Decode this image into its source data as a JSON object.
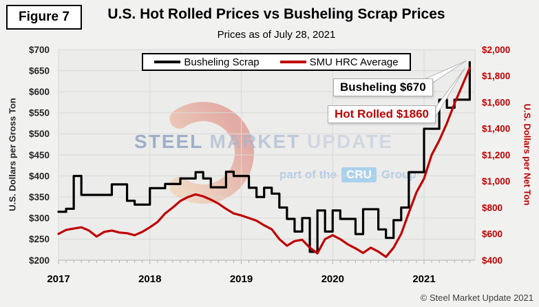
{
  "figure_label": "Figure 7",
  "title": "U.S. Hot Rolled Prices vs Busheling Scrap Prices",
  "subtitle": "Prices as of July 28, 2021",
  "copyright": "© Steel Market Update 2021",
  "watermark": {
    "word1": "STEEL",
    "word2": "MARKET",
    "word3": "UPDATE",
    "tagline_prefix": "part of the",
    "tagline_badge": "CRU",
    "tagline_suffix": "Group"
  },
  "annotations": {
    "busheling": {
      "text": "Busheling $670",
      "color": "#000000"
    },
    "hot_rolled": {
      "text": "Hot Rolled $1860",
      "color": "#C00000"
    }
  },
  "colors": {
    "page_bg": "#f1f1f0",
    "plot_bg": "#ececeb",
    "grid": "#d9d9d8",
    "axis_line": "#b3b3b3",
    "busheling_line": "#000000",
    "hrc_line": "#C00000",
    "right_axis_text": "#C00000",
    "left_axis_text": "#262626"
  },
  "chart_data": {
    "type": "line",
    "x": [
      "2017-01",
      "2017-02",
      "2017-03",
      "2017-04",
      "2017-05",
      "2017-06",
      "2017-07",
      "2017-08",
      "2017-09",
      "2017-10",
      "2017-11",
      "2017-12",
      "2018-01",
      "2018-02",
      "2018-03",
      "2018-04",
      "2018-05",
      "2018-06",
      "2018-07",
      "2018-08",
      "2018-09",
      "2018-10",
      "2018-11",
      "2018-12",
      "2019-01",
      "2019-02",
      "2019-03",
      "2019-04",
      "2019-05",
      "2019-06",
      "2019-07",
      "2019-08",
      "2019-09",
      "2019-10",
      "2019-11",
      "2019-12",
      "2020-01",
      "2020-02",
      "2020-03",
      "2020-04",
      "2020-05",
      "2020-06",
      "2020-07",
      "2020-08",
      "2020-09",
      "2020-10",
      "2020-11",
      "2020-12",
      "2021-01",
      "2021-02",
      "2021-03",
      "2021-04",
      "2021-05",
      "2021-06",
      "2021-07"
    ],
    "series": [
      {
        "name": "Busheling Scrap",
        "axis": "left",
        "color": "#000000",
        "style": "step",
        "values": [
          315,
          322,
          400,
          355,
          355,
          355,
          355,
          380,
          380,
          341,
          332,
          332,
          371,
          371,
          381,
          381,
          394,
          394,
          409,
          394,
          373,
          373,
          410,
          400,
          400,
          372,
          350,
          372,
          358,
          325,
          298,
          268,
          300,
          220,
          318,
          268,
          318,
          298,
          298,
          262,
          321,
          321,
          273,
          253,
          295,
          325,
          409,
          409,
          512,
          512,
          581,
          562,
          581,
          581,
          670
        ]
      },
      {
        "name": "SMU HRC Average",
        "axis": "right",
        "color": "#C00000",
        "style": "linear",
        "values": [
          600,
          630,
          640,
          650,
          625,
          580,
          615,
          625,
          610,
          605,
          590,
          615,
          650,
          690,
          755,
          800,
          850,
          880,
          900,
          885,
          860,
          830,
          790,
          755,
          740,
          720,
          700,
          665,
          635,
          560,
          510,
          545,
          555,
          495,
          452,
          560,
          590,
          560,
          520,
          490,
          455,
          495,
          465,
          425,
          495,
          600,
          760,
          915,
          1020,
          1200,
          1310,
          1440,
          1590,
          1725,
          1860
        ]
      }
    ],
    "left_axis": {
      "title": "U.S. Dollars per Gross Ton",
      "min": 200,
      "max": 700,
      "tick_step": 50,
      "tick_labels": [
        "$700",
        "$650",
        "$600",
        "$550",
        "$500",
        "$450",
        "$400",
        "$350",
        "$300",
        "$250",
        "$200"
      ]
    },
    "right_axis": {
      "title": "U.S. Dollars per Net Ton",
      "min": 400,
      "max": 2000,
      "tick_step": 200,
      "tick_labels": [
        "$2,000",
        "$1,800",
        "$1,600",
        "$1,400",
        "$1,200",
        "$1,000",
        "$800",
        "$600",
        "$400"
      ]
    },
    "x_axis": {
      "tick_labels": [
        "2017",
        "2018",
        "2019",
        "2020",
        "2021"
      ],
      "year_start_indices": [
        0,
        12,
        24,
        36,
        48
      ]
    },
    "legend": {
      "position": "top-center",
      "entries": [
        "Busheling Scrap",
        "SMU HRC Average"
      ]
    },
    "grid": true,
    "final_values": {
      "busheling": 670,
      "hot_rolled": 1860
    }
  }
}
